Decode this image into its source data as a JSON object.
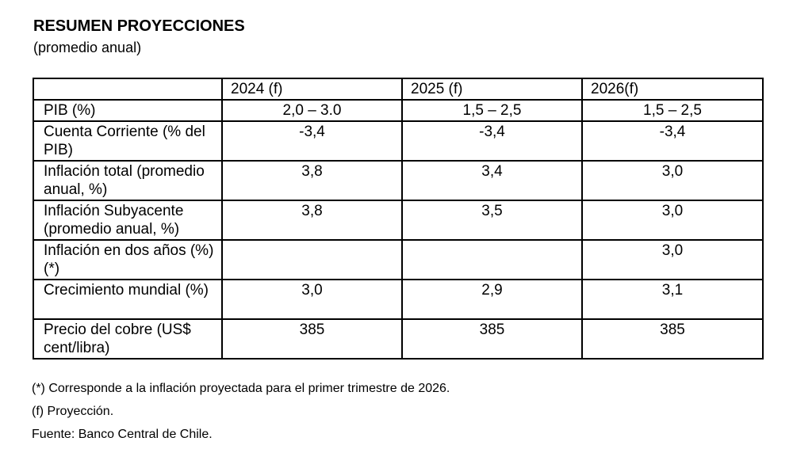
{
  "title": "RESUMEN PROYECCIONES",
  "subtitle": "(promedio anual)",
  "table": {
    "columns": [
      "",
      "2024 (f)",
      "2025 (f)",
      "2026(f)"
    ],
    "rows": [
      {
        "label": "PIB (%)",
        "values": [
          "2,0 – 3.0",
          "1,5 – 2,5",
          "1,5 – 2,5"
        ]
      },
      {
        "label": "Cuenta Corriente (% del PIB)",
        "values": [
          "-3,4",
          "-3,4",
          "-3,4"
        ]
      },
      {
        "label": "Inflación total (promedio anual, %)",
        "values": [
          "3,8",
          "3,4",
          "3,0"
        ]
      },
      {
        "label": "Inflación Subyacente (promedio anual, %)",
        "values": [
          "3,8",
          "3,5",
          "3,0"
        ]
      },
      {
        "label": "Inflación en dos años (%) (*)",
        "values": [
          "",
          "",
          "3,0"
        ]
      },
      {
        "label": "Crecimiento mundial (%)",
        "values": [
          "3,0",
          "2,9",
          "3,1"
        ]
      },
      {
        "label": "Precio del cobre (US$ cent/libra)",
        "values": [
          "385",
          "385",
          "385"
        ]
      }
    ]
  },
  "notes": [
    "(*) Corresponde a la inflación proyectada para el primer trimestre de 2026.",
    "(f) Proyección.",
    "Fuente: Banco Central de Chile."
  ]
}
